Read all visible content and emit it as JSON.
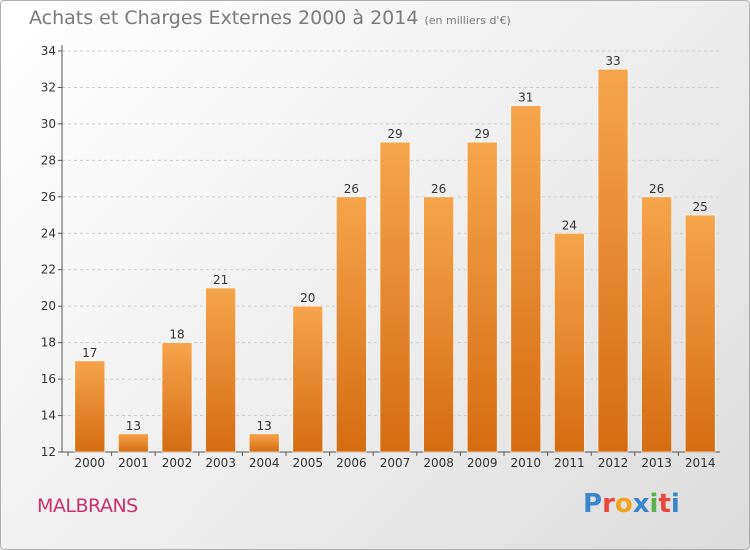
{
  "header": {
    "title": "Achats et Charges Externes 2000 à 2014",
    "unit": "(en milliers d'€)"
  },
  "footer": {
    "commune": "MALBRANS",
    "logo_text": "Proxiti",
    "logo_colors": [
      "#3a86c8",
      "#e8473b",
      "#f2a21c",
      "#3a86c8",
      "#5bb24a",
      "#e8473b",
      "#3a86c8"
    ]
  },
  "colors": {
    "bar_top": "#f6a54c",
    "bar_bottom": "#d56c12",
    "axis": "#555555",
    "grid": "#cfcfcf"
  },
  "chart_data": {
    "type": "bar",
    "title": "Achats et Charges Externes 2000 à 2014",
    "subtitle": "(en milliers d'€)",
    "categories": [
      "2000",
      "2001",
      "2002",
      "2003",
      "2004",
      "2005",
      "2006",
      "2007",
      "2008",
      "2009",
      "2010",
      "2011",
      "2012",
      "2013",
      "2014"
    ],
    "values": [
      17,
      13,
      18,
      21,
      13,
      20,
      26,
      29,
      26,
      29,
      31,
      24,
      33,
      26,
      25
    ],
    "ylim": [
      12,
      34
    ],
    "yticks": [
      12,
      14,
      16,
      18,
      20,
      22,
      24,
      26,
      28,
      30,
      32,
      34
    ],
    "xlabel": "",
    "ylabel": "",
    "grid": true
  }
}
